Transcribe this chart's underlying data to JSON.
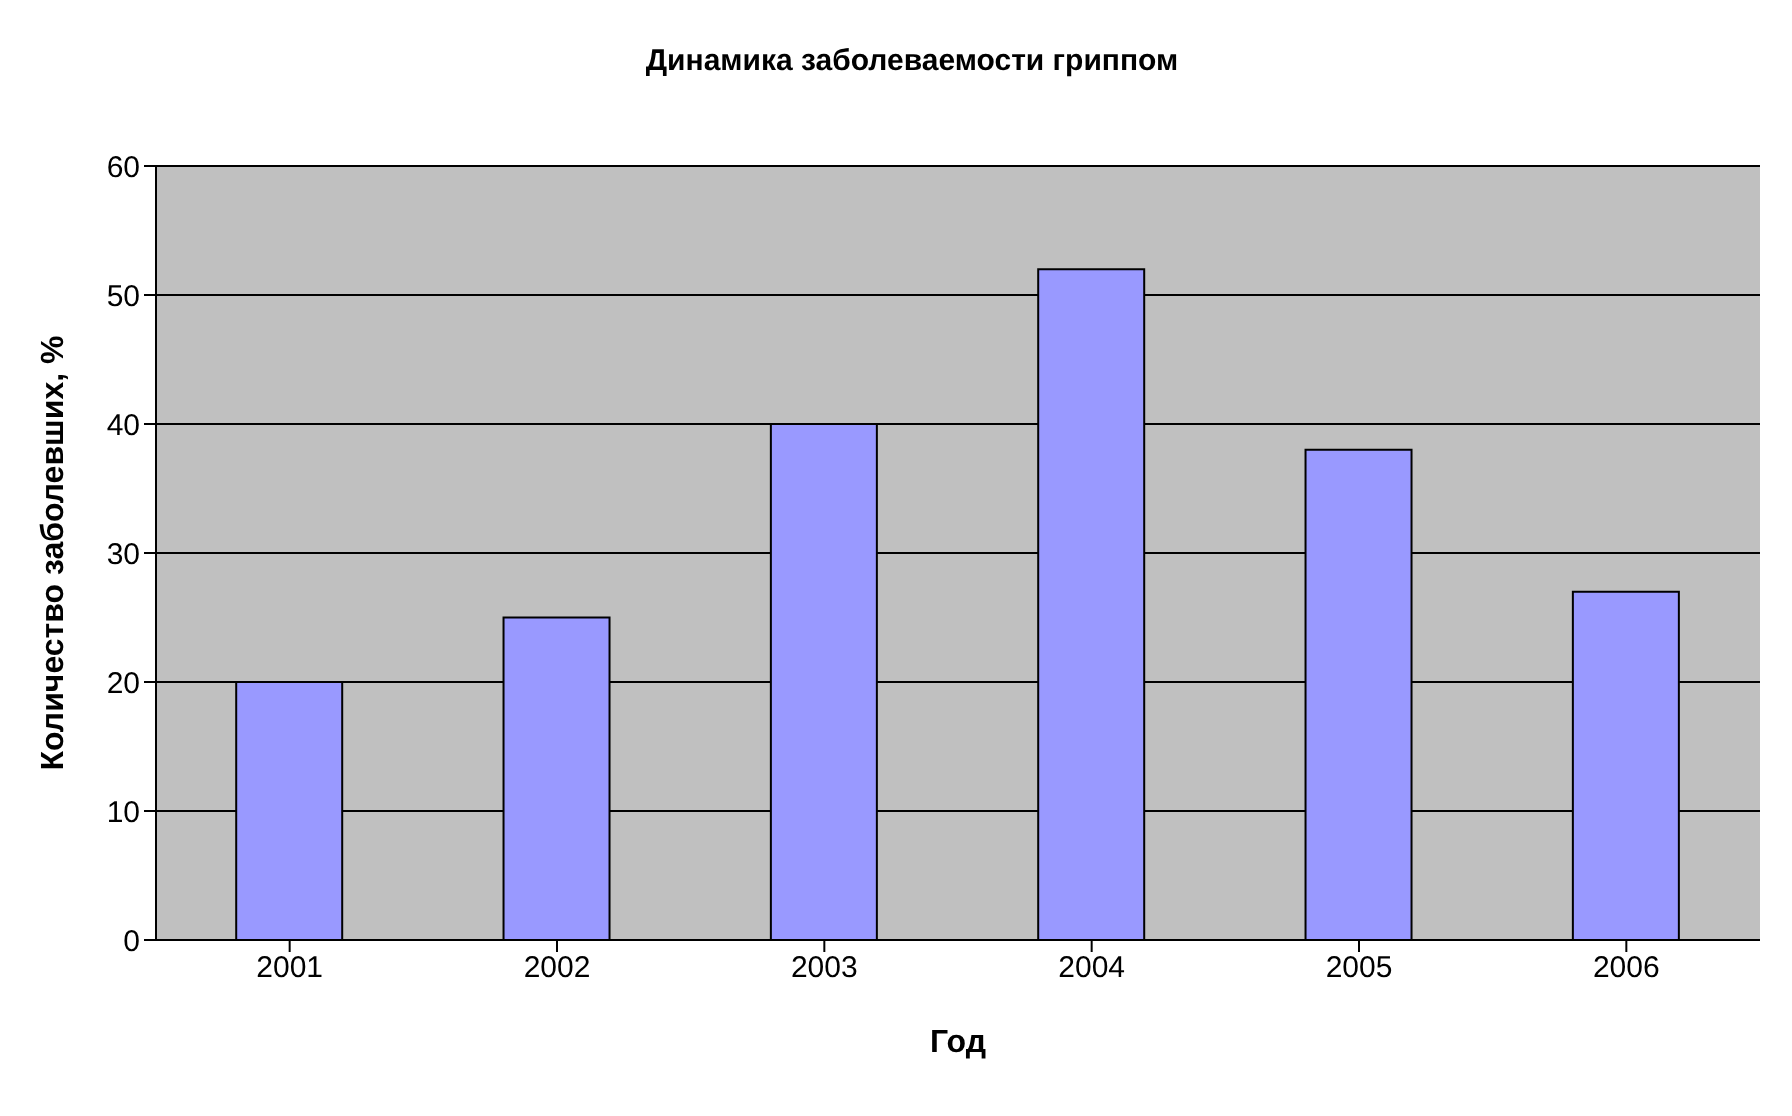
{
  "chart_data": {
    "type": "bar",
    "title": "Динамика заболеваемости гриппом",
    "xlabel": "Год",
    "ylabel": "Количество заболевших, %",
    "categories": [
      "2001",
      "2002",
      "2003",
      "2004",
      "2005",
      "2006"
    ],
    "values": [
      20,
      25,
      40,
      52,
      38,
      27
    ],
    "color": "#9999ff",
    "ylim": [
      0,
      60
    ],
    "yticks": [
      0,
      10,
      20,
      30,
      40,
      50,
      60
    ],
    "grid": "y"
  }
}
